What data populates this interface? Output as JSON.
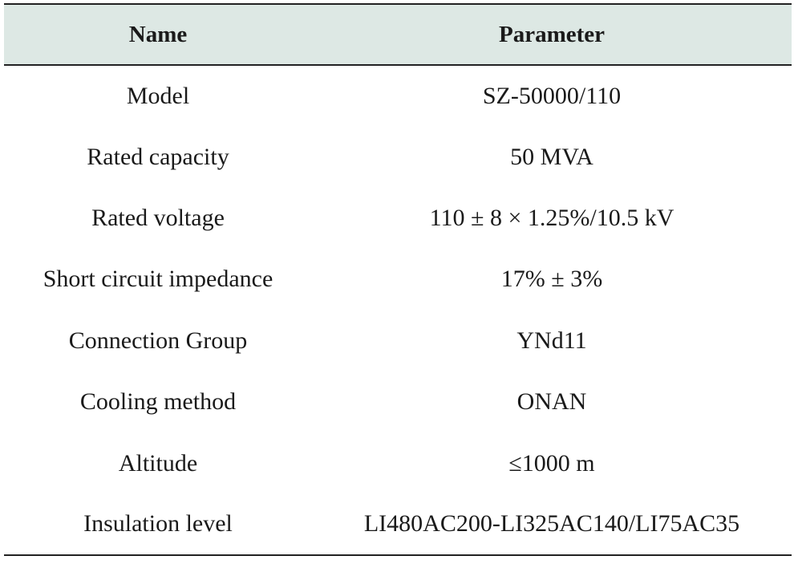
{
  "table": {
    "headers": [
      "Name",
      "Parameter"
    ],
    "rows": [
      [
        "Model",
        "SZ-50000/110"
      ],
      [
        "Rated capacity",
        "50 MVA"
      ],
      [
        "Rated voltage",
        "110 ± 8 × 1.25%/10.5 kV"
      ],
      [
        "Short circuit impedance",
        "17% ± 3%"
      ],
      [
        "Connection Group",
        "YNd11"
      ],
      [
        "Cooling method",
        "ONAN"
      ],
      [
        "Altitude",
        "≤1000 m"
      ],
      [
        "Insulation level",
        "LI480AC200-LI325AC140/LI75AC35"
      ]
    ]
  },
  "colors": {
    "header_background": "#dde8e4",
    "rule": "#222222",
    "text": "#1a1a1a"
  }
}
